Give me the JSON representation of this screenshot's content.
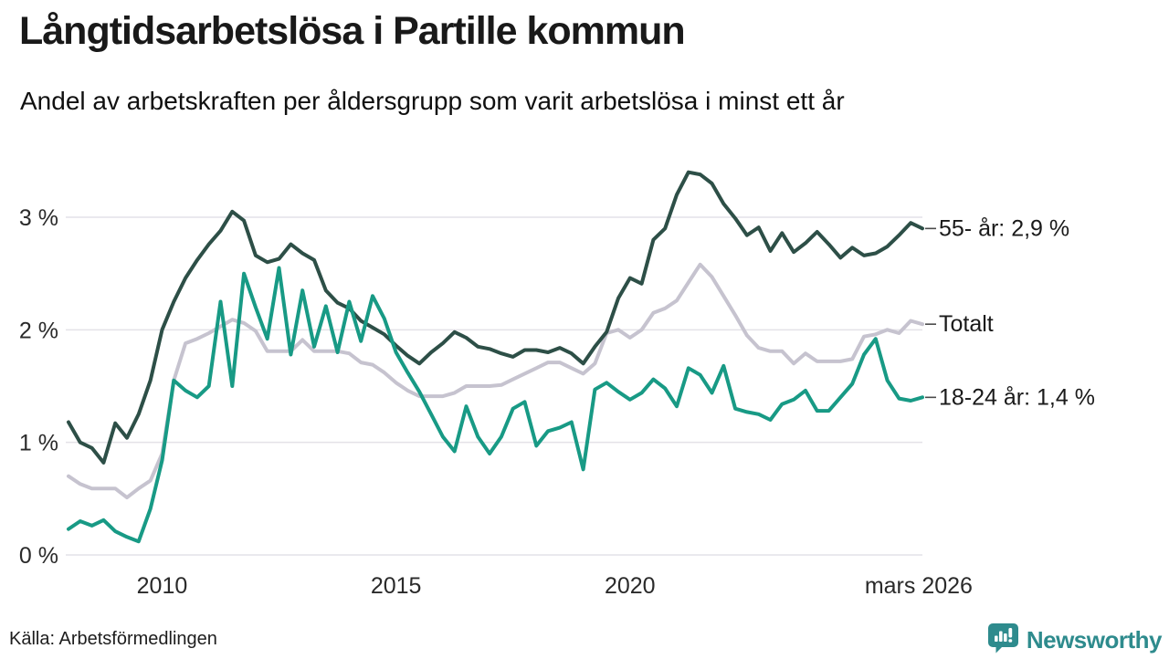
{
  "header": {
    "title": "Långtidsarbetslösa i Partille kommun",
    "subtitle": "Andel av arbetskraften per åldersgrupp som varit arbetslösa i minst ett år"
  },
  "footer": {
    "source": "Källa: Arbetsförmedlingen",
    "brand": "Newsworthy"
  },
  "colors": {
    "series_55": "#2d4f47",
    "series_total": "#c6c3cf",
    "series_18_24": "#189a85",
    "grid": "#e4e2e8",
    "brand_teal": "#2e8b8d"
  },
  "chart_data": {
    "type": "line",
    "x_unit": "decimal_year",
    "x_start": 2008.0,
    "x_step": 0.25,
    "xlim": [
      2008.0,
      2026.25
    ],
    "ylim": [
      0,
      3.6
    ],
    "grid": "horizontal",
    "legend_position": "right-end-labels",
    "y_ticks": [
      {
        "value": 0,
        "label": "0 %"
      },
      {
        "value": 1,
        "label": "1 %"
      },
      {
        "value": 2,
        "label": "2 %"
      },
      {
        "value": 3,
        "label": "3 %"
      }
    ],
    "x_ticks": [
      {
        "value": 2010,
        "label": "2010"
      },
      {
        "value": 2015,
        "label": "2015"
      },
      {
        "value": 2020,
        "label": "2020"
      },
      {
        "value": 2026.17,
        "label": "mars 2026"
      }
    ],
    "draw_order": [
      1,
      0,
      2
    ],
    "series": [
      {
        "id": "55-ar",
        "name": "55- år",
        "end_label": "55- år: 2,9 %",
        "end_value_label": "2,9 %",
        "color": "#2d4f47",
        "values": [
          1.18,
          1.0,
          0.95,
          0.82,
          1.17,
          1.04,
          1.25,
          1.55,
          2.0,
          2.25,
          2.46,
          2.62,
          2.76,
          2.88,
          3.05,
          2.97,
          2.66,
          2.6,
          2.63,
          2.76,
          2.68,
          2.62,
          2.35,
          2.24,
          2.19,
          2.08,
          2.02,
          1.96,
          1.86,
          1.77,
          1.7,
          1.8,
          1.88,
          1.98,
          1.93,
          1.85,
          1.83,
          1.79,
          1.76,
          1.82,
          1.82,
          1.8,
          1.84,
          1.79,
          1.7,
          1.85,
          1.98,
          2.28,
          2.46,
          2.41,
          2.8,
          2.9,
          3.2,
          3.4,
          3.38,
          3.3,
          3.12,
          2.99,
          2.84,
          2.91,
          2.7,
          2.86,
          2.69,
          2.77,
          2.87,
          2.76,
          2.64,
          2.73,
          2.66,
          2.68,
          2.74,
          2.84,
          2.95,
          2.9
        ]
      },
      {
        "id": "totalt",
        "name": "Totalt",
        "end_label": "Totalt",
        "end_value_label": "",
        "color": "#c6c3cf",
        "values": [
          0.7,
          0.63,
          0.59,
          0.59,
          0.59,
          0.51,
          0.59,
          0.66,
          0.9,
          1.55,
          1.88,
          1.92,
          1.97,
          2.03,
          2.09,
          2.06,
          1.99,
          1.81,
          1.81,
          1.81,
          1.91,
          1.81,
          1.81,
          1.81,
          1.79,
          1.71,
          1.69,
          1.62,
          1.53,
          1.46,
          1.41,
          1.41,
          1.41,
          1.44,
          1.5,
          1.5,
          1.5,
          1.51,
          1.56,
          1.61,
          1.66,
          1.71,
          1.71,
          1.66,
          1.61,
          1.7,
          1.97,
          2.0,
          1.93,
          2.0,
          2.15,
          2.19,
          2.26,
          2.42,
          2.58,
          2.47,
          2.3,
          2.13,
          1.95,
          1.84,
          1.81,
          1.81,
          1.7,
          1.79,
          1.72,
          1.72,
          1.72,
          1.74,
          1.94,
          1.96,
          2.0,
          1.97,
          2.08,
          2.05
        ]
      },
      {
        "id": "18-24-ar",
        "name": "18-24 år",
        "end_label": "18-24 år: 1,4 %",
        "end_value_label": "1,4 %",
        "color": "#189a85",
        "values": [
          0.23,
          0.3,
          0.26,
          0.31,
          0.21,
          0.16,
          0.12,
          0.41,
          0.84,
          1.55,
          1.46,
          1.4,
          1.5,
          2.25,
          1.5,
          2.5,
          2.2,
          1.92,
          2.55,
          1.78,
          2.35,
          1.85,
          2.21,
          1.8,
          2.25,
          1.9,
          2.3,
          2.1,
          1.8,
          1.62,
          1.45,
          1.25,
          1.05,
          0.92,
          1.32,
          1.05,
          0.9,
          1.05,
          1.3,
          1.36,
          0.97,
          1.1,
          1.13,
          1.18,
          0.76,
          1.47,
          1.53,
          1.45,
          1.38,
          1.44,
          1.56,
          1.48,
          1.32,
          1.66,
          1.6,
          1.44,
          1.68,
          1.3,
          1.27,
          1.25,
          1.2,
          1.34,
          1.38,
          1.46,
          1.28,
          1.28,
          1.4,
          1.52,
          1.78,
          1.92,
          1.55,
          1.39,
          1.37,
          1.4
        ]
      }
    ]
  }
}
